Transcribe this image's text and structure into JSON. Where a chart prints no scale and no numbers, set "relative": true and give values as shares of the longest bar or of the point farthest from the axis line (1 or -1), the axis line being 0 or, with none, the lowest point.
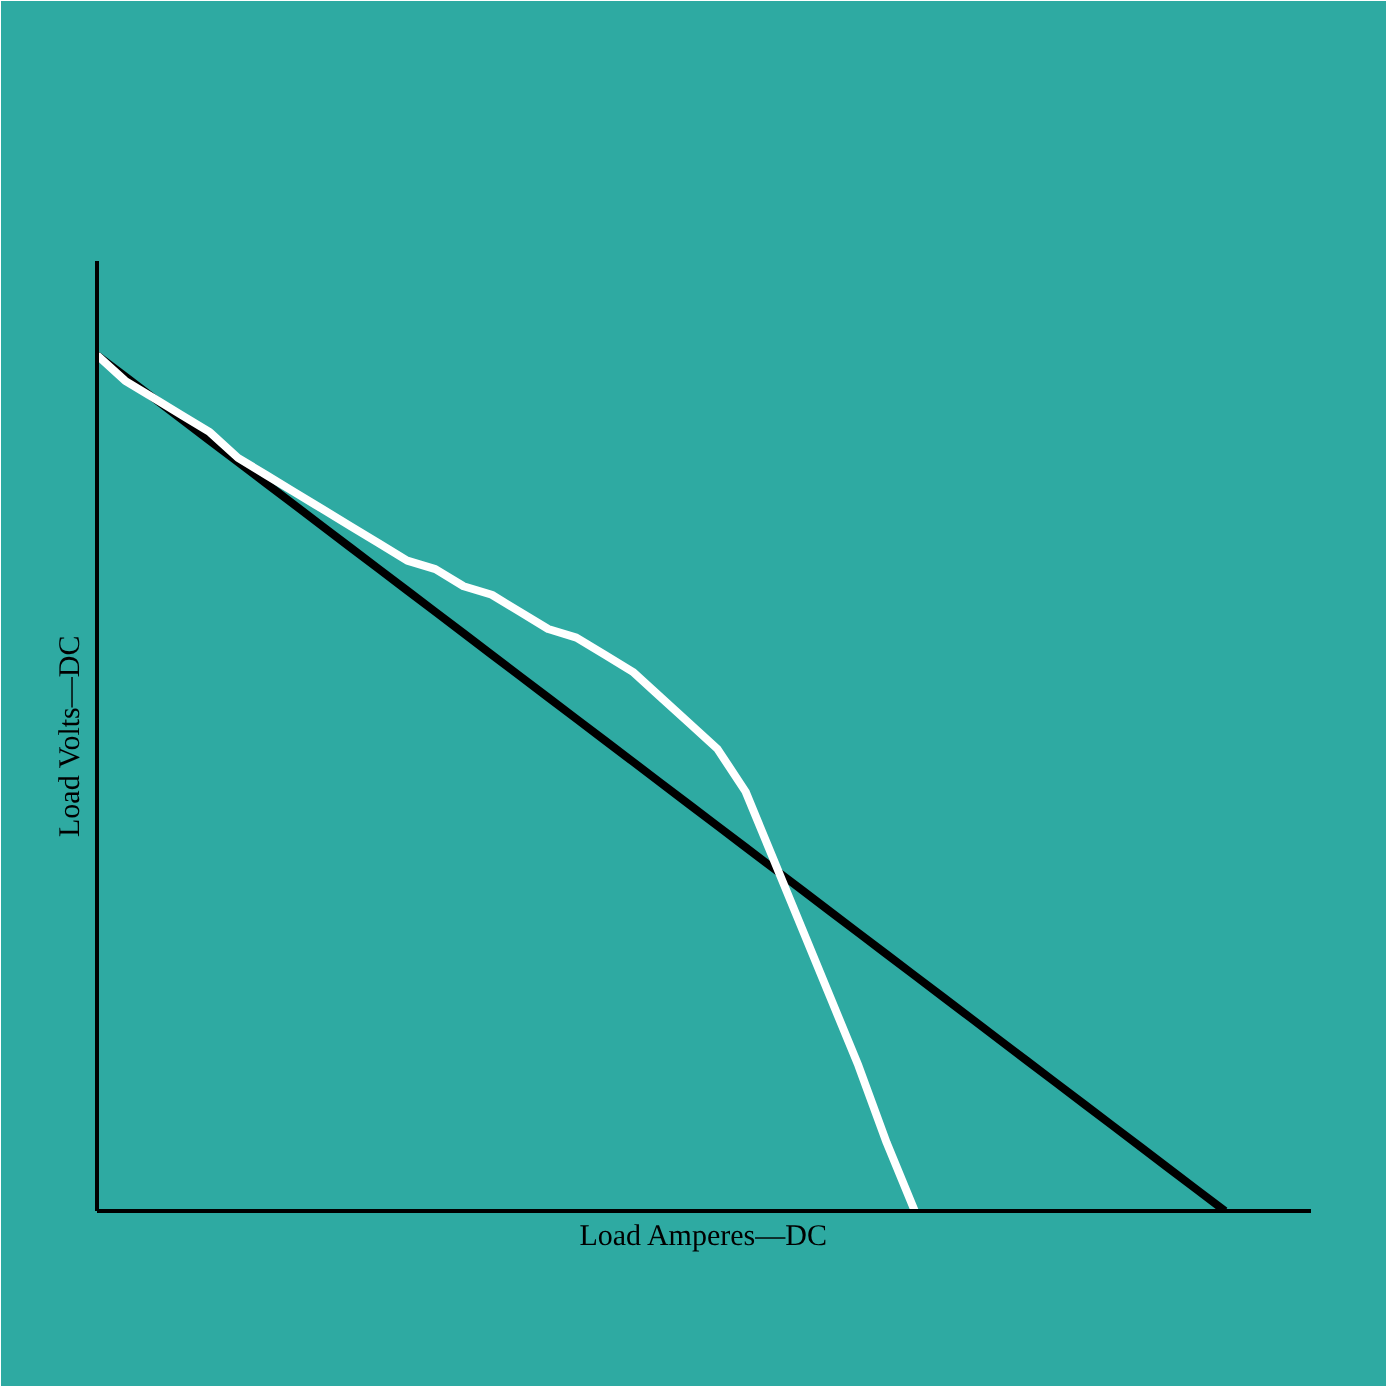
{
  "chart_data": {
    "type": "line",
    "relative": true,
    "xlabel": "Load Amperes—DC",
    "ylabel": "Load Volts—DC",
    "marker": "none",
    "line_style": "solid",
    "categories": [
      null,
      null,
      null,
      null,
      null,
      null,
      null,
      null,
      null,
      null,
      null,
      null,
      null,
      null,
      null,
      null,
      null,
      null,
      null,
      null,
      null,
      null,
      null,
      null,
      null,
      null,
      null,
      null,
      null,
      null,
      null,
      null,
      null,
      null,
      null,
      null,
      null,
      null,
      null,
      null,
      null
    ],
    "series": [
      {
        "color": "#000000",
        "values": [
          1,
          0.975,
          0.95,
          0.925,
          0.9,
          0.875,
          0.85,
          0.825,
          0.8,
          0.775,
          0.75,
          0.725,
          0.7,
          0.675,
          0.65,
          0.625,
          0.6,
          0.575,
          0.55,
          0.525,
          0.5,
          0.475,
          0.45,
          0.425,
          0.4,
          0.375,
          0.35,
          0.325,
          0.3,
          0.275,
          0.25,
          0.225,
          0.2,
          0.175,
          0.15,
          0.125,
          0.1,
          0.075,
          0.05,
          0.025,
          0
        ]
      },
      {
        "color": "#ffffff",
        "values": [
          1,
          0.97,
          0.95,
          0.93,
          0.91,
          0.88,
          0.86,
          0.84,
          0.82,
          0.8,
          0.78,
          0.76,
          0.75,
          0.73,
          0.72,
          0.7,
          0.68,
          0.67,
          0.65,
          0.63,
          0.6,
          0.57,
          0.54,
          0.49,
          0.41,
          0.33,
          0.25,
          0.17,
          0.08,
          0,
          null,
          null,
          null,
          null,
          null,
          null,
          null,
          null,
          null,
          null,
          null
        ]
      }
    ]
  }
}
